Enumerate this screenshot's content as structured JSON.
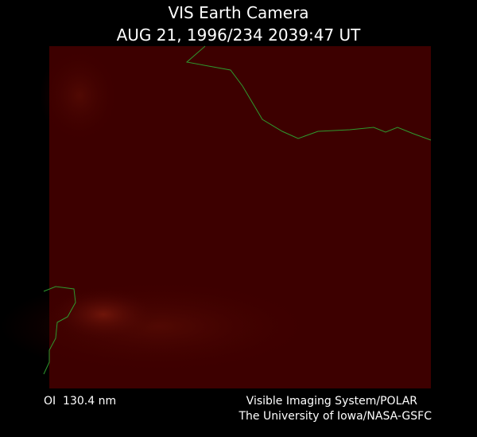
{
  "header": {
    "title": "VIS Earth Camera",
    "timestamp": "AUG 21, 1996/234 2039:47 UT"
  },
  "footer": {
    "filter": "OI  130.4 nm",
    "instrument": "Visible Imaging System/POLAR",
    "credit": "The University of Iowa/NASA-GSFC"
  }
}
